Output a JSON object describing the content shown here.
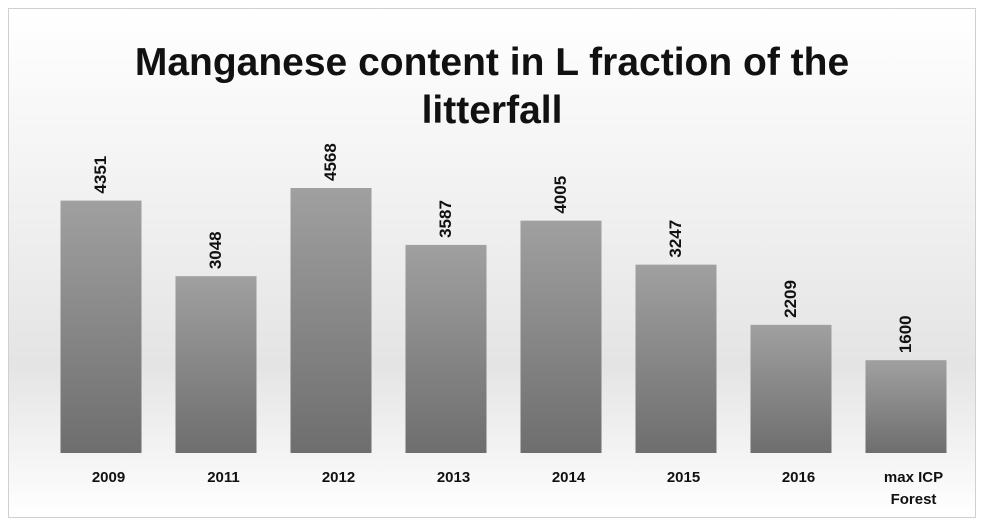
{
  "chart_data": {
    "type": "bar",
    "title": "Manganese content in L fraction of the litterfall",
    "categories": [
      "2009",
      "2011",
      "2012",
      "2013",
      "2014",
      "2015",
      "2016",
      "max ICP Forest"
    ],
    "values": [
      4351,
      3048,
      4568,
      3587,
      4005,
      3247,
      2209,
      1600
    ],
    "color": "#8a8a8a"
  }
}
